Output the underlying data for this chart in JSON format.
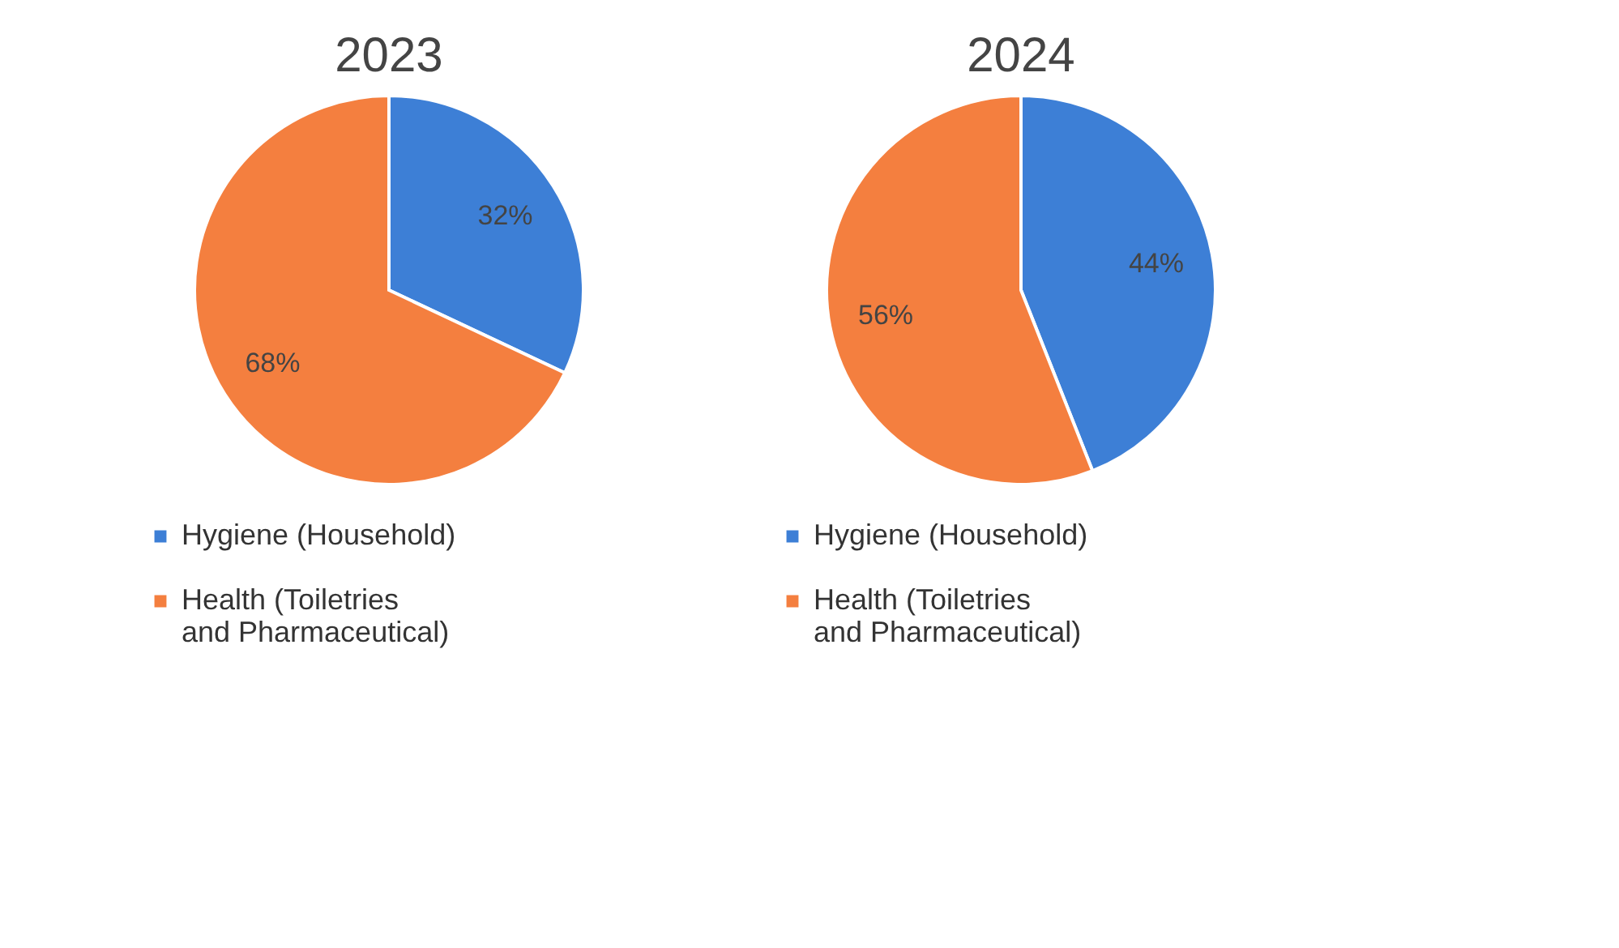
{
  "chart_data": [
    {
      "type": "pie",
      "title": "2023",
      "categories": [
        "Hygiene (Household)",
        "Health (Toiletries and Pharmaceutical)"
      ],
      "values": [
        32,
        68
      ],
      "colors": [
        "#3d7fd6",
        "#f47f3f"
      ],
      "value_labels": [
        "32%",
        "68%"
      ],
      "legend": "bottom"
    },
    {
      "type": "pie",
      "title": "2024",
      "categories": [
        "Hygiene (Household)",
        "Health (Toiletries and Pharmaceutical)"
      ],
      "values": [
        44,
        56
      ],
      "colors": [
        "#3d7fd6",
        "#f47f3f"
      ],
      "value_labels": [
        "44%",
        "56%"
      ],
      "legend": "bottom"
    }
  ]
}
